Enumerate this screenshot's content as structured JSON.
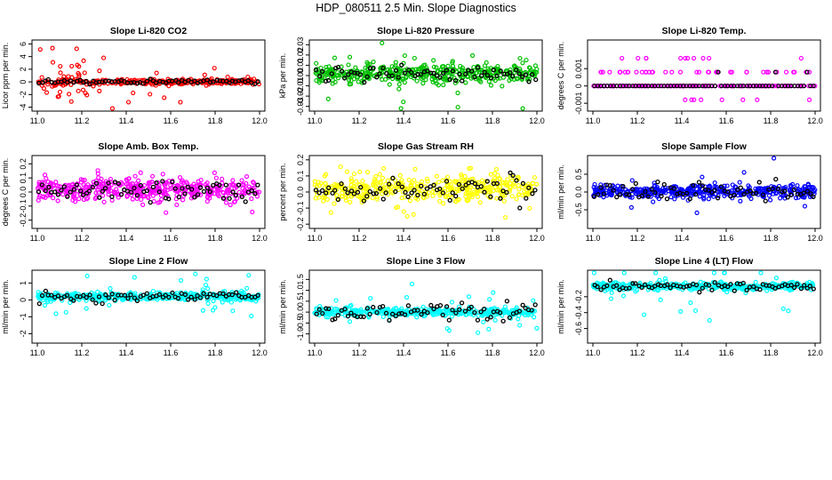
{
  "figure_title": "HDP_080511  2.5 Min. Slope Diagnostics",
  "chart_data": [
    {
      "type": "scatter",
      "title": "Slope Li-820 CO2",
      "ylabel": "Licor ppm per min.",
      "color": "#ff0000",
      "xlim": [
        11.0,
        12.0
      ],
      "ylim": [
        -4.2,
        6.2
      ],
      "xticks": [
        "11.0",
        "11.2",
        "11.4",
        "11.6",
        "11.8",
        "12.0"
      ],
      "yticks": [
        -4,
        -2,
        0,
        2,
        4,
        6
      ],
      "ytick_labels": [
        "-4",
        "-2",
        "0",
        "2",
        "4",
        "6"
      ],
      "spread": 0.35,
      "outlier_spread": 3.2,
      "black_spread": 0.25,
      "center": 0,
      "n_points": 320,
      "n_black": 70
    },
    {
      "type": "scatter",
      "title": "Slope Li-820 Pressure",
      "ylabel": "kPa per min.",
      "color": "#00c000",
      "xlim": [
        11.0,
        12.0
      ],
      "ylim": [
        -0.032,
        0.032
      ],
      "xticks": [
        "11.0",
        "11.2",
        "11.4",
        "11.6",
        "11.8",
        "12.0"
      ],
      "yticks": [
        -0.03,
        -0.02,
        -0.01,
        0,
        0.01,
        0.02,
        0.03
      ],
      "ytick_labels": [
        "-0.03",
        "-0.02",
        "-0.01",
        "0.00",
        "0.01",
        "0.02",
        "0.03"
      ],
      "spread": 0.008,
      "outlier_spread": 0.025,
      "black_spread": 0.005,
      "center": 0.002,
      "n_points": 420,
      "n_black": 70
    },
    {
      "type": "scatter",
      "title": "Slope Li-820 Temp.",
      "ylabel": "degrees C per min.",
      "color": "#ff00ff",
      "xlim": [
        11.0,
        12.0
      ],
      "ylim": [
        -0.0013,
        0.0025
      ],
      "xticks": [
        "11.0",
        "11.2",
        "11.4",
        "11.6",
        "11.8",
        "12.0"
      ],
      "yticks": [
        -0.001,
        0,
        0.001
      ],
      "ytick_labels": [
        "-0.001",
        "0",
        "0.001"
      ],
      "levels": [
        0,
        0.0008,
        0.0016,
        -0.0008
      ],
      "center": 0,
      "n_points": 200,
      "n_black": 70
    },
    {
      "type": "scatter",
      "title": "Slope Amb. Box Temp.",
      "ylabel": "degrees C per min.",
      "color": "#ff00ff",
      "xlim": [
        11.0,
        12.0
      ],
      "ylim": [
        -0.24,
        0.24
      ],
      "xticks": [
        "11.0",
        "11.2",
        "11.4",
        "11.6",
        "11.8",
        "12.0"
      ],
      "yticks": [
        -0.2,
        -0.1,
        0,
        0.1,
        0.2
      ],
      "ytick_labels": [
        "-0.2",
        "-0.1",
        "0.0",
        "0.1",
        "0.2"
      ],
      "spread": 0.07,
      "outlier_spread": 0.16,
      "black_spread": 0.06,
      "center": 0.02,
      "n_points": 420,
      "n_black": 70
    },
    {
      "type": "scatter",
      "title": "Slope Gas Stream RH",
      "ylabel": "percent per min.",
      "color": "#ffff00",
      "xlim": [
        11.0,
        12.0
      ],
      "ylim": [
        -0.21,
        0.21
      ],
      "xticks": [
        "11.0",
        "11.2",
        "11.4",
        "11.6",
        "11.8",
        "12.0"
      ],
      "yticks": [
        -0.2,
        -0.1,
        0,
        0.1,
        0.2
      ],
      "ytick_labels": [
        "-0.2",
        "-0.1",
        "0.0",
        "0.1",
        "0.2"
      ],
      "spread": 0.07,
      "outlier_spread": 0.15,
      "black_spread": 0.06,
      "center": 0.02,
      "n_points": 420,
      "n_black": 70
    },
    {
      "type": "scatter",
      "title": "Slope Sample Flow",
      "ylabel": "ml/min per min.",
      "color": "#0000ff",
      "xlim": [
        11.0,
        12.0
      ],
      "ylim": [
        -0.95,
        0.95
      ],
      "xticks": [
        "11.0",
        "11.2",
        "11.4",
        "11.6",
        "11.8",
        "12.0"
      ],
      "yticks": [
        -0.5,
        0,
        0.5
      ],
      "ytick_labels": [
        "-0.5",
        "0.0",
        "0.5"
      ],
      "spread": 0.15,
      "outlier_spread": 0.55,
      "black_spread": 0.18,
      "center": 0.02,
      "n_points": 420,
      "n_black": 70
    },
    {
      "type": "scatter",
      "title": "Slope Line 2 Flow",
      "ylabel": "ml/min per min.",
      "color": "#00ffff",
      "xlim": [
        11.0,
        12.0
      ],
      "ylim": [
        -2.4,
        1.6
      ],
      "xticks": [
        "11.0",
        "11.2",
        "11.4",
        "11.6",
        "11.8",
        "12.0"
      ],
      "yticks": [
        -2,
        -1,
        0,
        1
      ],
      "ytick_labels": [
        "-2",
        "-1",
        "0",
        "1"
      ],
      "spread": 0.2,
      "outlier_spread": 1.2,
      "black_spread": 0.25,
      "center": 0.2,
      "n_points": 420,
      "n_black": 70
    },
    {
      "type": "scatter",
      "title": "Slope Line 3 Flow",
      "ylabel": "ml/min per min.",
      "color": "#00ffff",
      "xlim": [
        11.0,
        12.0
      ],
      "ylim": [
        -1.3,
        1.8
      ],
      "xticks": [
        "11.0",
        "11.2",
        "11.4",
        "11.6",
        "11.8",
        "12.0"
      ],
      "yticks": [
        -1,
        -0.5,
        0,
        0.5,
        1,
        1.5
      ],
      "ytick_labels": [
        "-1.0",
        "-0.5",
        "0.0",
        "0.5",
        "1.0",
        "1.5"
      ],
      "spread": 0.15,
      "outlier_spread": 0.8,
      "black_spread": 0.3,
      "center": 0.0,
      "n_points": 420,
      "n_black": 70
    },
    {
      "type": "scatter",
      "title": "Slope Line 4 (LT) Flow",
      "ylabel": "ml/min per min.",
      "color": "#00ffff",
      "xlim": [
        11.0,
        12.0
      ],
      "ylim": [
        -0.75,
        0.1
      ],
      "xticks": [
        "11.0",
        "11.2",
        "11.4",
        "11.6",
        "11.8",
        "12.0"
      ],
      "yticks": [
        -0.6,
        -0.4,
        -0.2
      ],
      "ytick_labels": [
        "-0.6",
        "-0.4",
        "-0.2"
      ],
      "spread": 0.04,
      "outlier_spread": 0.35,
      "black_spread": 0.04,
      "center": -0.07,
      "n_points": 420,
      "n_black": 70
    }
  ]
}
